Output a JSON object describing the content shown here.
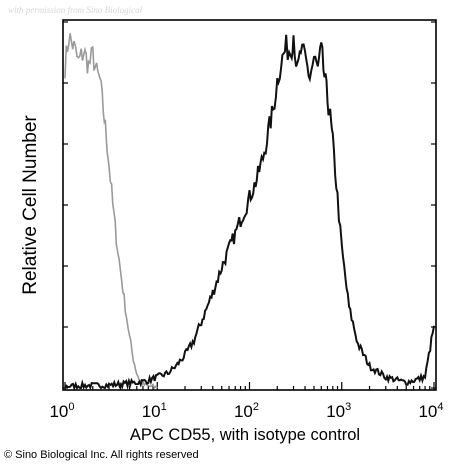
{
  "watermark": "with permission from Sino Biological",
  "copyright": "© Sino Biological Inc. All rights reserved",
  "colors": {
    "isotype": "#9a9a9a",
    "sample": "#111111",
    "frame": "#000000"
  },
  "chart_data": {
    "type": "line",
    "title": "",
    "xlabel": "APC CD55, with isotype control",
    "ylabel": "Relative Cell Number",
    "xscale": "log",
    "xlim": [
      1,
      10000
    ],
    "ylim": [
      0,
      100
    ],
    "grid": false,
    "legend": "none",
    "x_ticks": [
      {
        "value": 1,
        "base": "10",
        "exp": "0"
      },
      {
        "value": 10,
        "base": "10",
        "exp": "1"
      },
      {
        "value": 100,
        "base": "10",
        "exp": "2"
      },
      {
        "value": 1000,
        "base": "10",
        "exp": "3"
      },
      {
        "value": 10000,
        "base": "10",
        "exp": "4"
      }
    ],
    "series": [
      {
        "x": [
          1,
          1.1,
          1.25,
          1.4,
          1.6,
          1.8,
          2.0,
          2.2,
          2.4,
          2.6,
          2.8,
          3.0,
          3.3,
          3.6,
          4.0,
          4.5,
          5.0,
          5.5,
          6.0,
          6.5,
          7.0,
          8.0,
          9.0,
          10.0
        ],
        "y": [
          88,
          96,
          93,
          89,
          92,
          88,
          91,
          86,
          84,
          76,
          69,
          61,
          50,
          41,
          32,
          22,
          14,
          8,
          4,
          2,
          1,
          0.5,
          0.3,
          0
        ]
      },
      {
        "x": [
          1,
          3,
          6,
          8,
          10,
          13,
          16,
          20,
          25,
          30,
          40,
          50,
          60,
          70,
          80,
          90,
          100,
          120,
          140,
          160,
          180,
          200,
          220,
          250,
          280,
          300,
          330,
          360,
          400,
          450,
          500,
          550,
          600,
          650,
          700,
          750,
          800,
          900,
          1000,
          1200,
          1500,
          2000,
          3000,
          5000,
          8000,
          10000
        ],
        "y": [
          0.5,
          0.8,
          1.5,
          2,
          3,
          4,
          6,
          9,
          13,
          18,
          26,
          33,
          38,
          42,
          46,
          49,
          52,
          57,
          63,
          70,
          76,
          84,
          89,
          93,
          92,
          97,
          86,
          92,
          90,
          85,
          90,
          87,
          92,
          85,
          79,
          74,
          67,
          52,
          38,
          22,
          12,
          6,
          3,
          1.5,
          3,
          17
        ]
      }
    ]
  }
}
